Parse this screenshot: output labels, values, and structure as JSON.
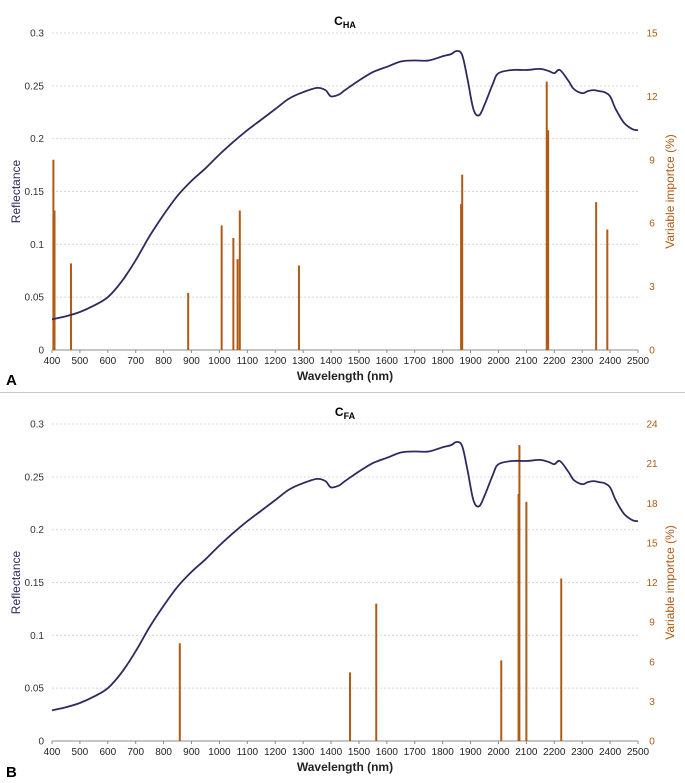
{
  "chart_data": [
    {
      "panel": "A",
      "type": "line",
      "title": "C",
      "title_sub": "HA",
      "xlabel": "Wavelength (nm)",
      "ylabel": "Reflectance",
      "y2label": "Variable importce (%)",
      "xlim": [
        400,
        2500
      ],
      "xticks": [
        400,
        500,
        600,
        700,
        800,
        900,
        1000,
        1100,
        1200,
        1300,
        1400,
        1500,
        1600,
        1700,
        1800,
        1900,
        2000,
        2100,
        2200,
        2300,
        2400,
        2500
      ],
      "ylim": [
        0,
        0.3
      ],
      "yticks": [
        0,
        0.05,
        0.1,
        0.15,
        0.2,
        0.25,
        0.3
      ],
      "ytick_labels": [
        "0",
        "0.05",
        "0.1",
        "0.15",
        "0.2",
        "0.25",
        "0.3"
      ],
      "y2lim": [
        0,
        15
      ],
      "y2ticks": [
        0,
        3,
        6,
        9,
        12,
        15
      ],
      "grid": "horizontal",
      "series": [
        {
          "kind": "reflectance-line",
          "color": "#2e2a5e",
          "x": [
            400,
            450,
            500,
            550,
            600,
            650,
            700,
            750,
            800,
            850,
            900,
            950,
            1000,
            1050,
            1100,
            1150,
            1200,
            1250,
            1300,
            1350,
            1380,
            1400,
            1430,
            1450,
            1500,
            1550,
            1600,
            1650,
            1700,
            1750,
            1800,
            1830,
            1850,
            1870,
            1890,
            1910,
            1930,
            1950,
            1980,
            2000,
            2050,
            2100,
            2150,
            2180,
            2200,
            2220,
            2250,
            2270,
            2300,
            2320,
            2340,
            2360,
            2380,
            2400,
            2420,
            2450,
            2480,
            2500
          ],
          "y": [
            0.029,
            0.032,
            0.036,
            0.042,
            0.05,
            0.065,
            0.085,
            0.108,
            0.128,
            0.146,
            0.16,
            0.172,
            0.185,
            0.197,
            0.208,
            0.218,
            0.228,
            0.238,
            0.244,
            0.248,
            0.246,
            0.24,
            0.242,
            0.246,
            0.255,
            0.263,
            0.268,
            0.273,
            0.274,
            0.274,
            0.278,
            0.28,
            0.283,
            0.279,
            0.255,
            0.228,
            0.222,
            0.232,
            0.252,
            0.262,
            0.265,
            0.265,
            0.266,
            0.264,
            0.262,
            0.265,
            0.255,
            0.247,
            0.243,
            0.245,
            0.246,
            0.245,
            0.244,
            0.24,
            0.228,
            0.215,
            0.209,
            0.208
          ]
        },
        {
          "kind": "importance-bars",
          "color": "#b05a14",
          "x": [
            405,
            409,
            468,
            888,
            1008,
            1050,
            1065,
            1073,
            1285,
            1866,
            1870,
            2173,
            2178,
            2350,
            2390
          ],
          "values": [
            9.0,
            6.6,
            4.1,
            2.7,
            5.9,
            5.3,
            4.3,
            6.6,
            4.0,
            6.9,
            8.3,
            12.7,
            10.4,
            7.0,
            5.7
          ]
        }
      ]
    },
    {
      "panel": "B",
      "type": "line",
      "title": "C",
      "title_sub": "FA",
      "xlabel": "Wavelength (nm)",
      "ylabel": "Reflectance",
      "y2label": "Variable importce (%)",
      "xlim": [
        400,
        2500
      ],
      "xticks": [
        400,
        500,
        600,
        700,
        800,
        900,
        1000,
        1100,
        1200,
        1300,
        1400,
        1500,
        1600,
        1700,
        1800,
        1900,
        2000,
        2100,
        2200,
        2300,
        2400,
        2500
      ],
      "ylim": [
        0,
        0.3
      ],
      "yticks": [
        0,
        0.05,
        0.1,
        0.15,
        0.2,
        0.25,
        0.3
      ],
      "ytick_labels": [
        "0",
        "0.05",
        "0.1",
        "0.15",
        "0.2",
        "0.25",
        "0.3"
      ],
      "y2lim": [
        0,
        24
      ],
      "y2ticks": [
        0,
        3,
        6,
        9,
        12,
        15,
        18,
        21,
        24
      ],
      "grid": "horizontal",
      "series": [
        {
          "kind": "reflectance-line",
          "color": "#2e2a5e",
          "x": [
            400,
            450,
            500,
            550,
            600,
            650,
            700,
            750,
            800,
            850,
            900,
            950,
            1000,
            1050,
            1100,
            1150,
            1200,
            1250,
            1300,
            1350,
            1380,
            1400,
            1430,
            1450,
            1500,
            1550,
            1600,
            1650,
            1700,
            1750,
            1800,
            1830,
            1850,
            1870,
            1890,
            1910,
            1930,
            1950,
            1980,
            2000,
            2050,
            2100,
            2150,
            2180,
            2200,
            2220,
            2250,
            2270,
            2300,
            2320,
            2340,
            2360,
            2380,
            2400,
            2420,
            2450,
            2480,
            2500
          ],
          "y": [
            0.029,
            0.032,
            0.036,
            0.042,
            0.05,
            0.065,
            0.085,
            0.108,
            0.128,
            0.146,
            0.16,
            0.172,
            0.185,
            0.197,
            0.208,
            0.218,
            0.228,
            0.238,
            0.244,
            0.248,
            0.246,
            0.24,
            0.242,
            0.246,
            0.255,
            0.263,
            0.268,
            0.273,
            0.274,
            0.274,
            0.278,
            0.28,
            0.283,
            0.279,
            0.255,
            0.228,
            0.222,
            0.232,
            0.252,
            0.262,
            0.265,
            0.265,
            0.266,
            0.264,
            0.262,
            0.265,
            0.255,
            0.247,
            0.243,
            0.245,
            0.246,
            0.245,
            0.244,
            0.24,
            0.228,
            0.215,
            0.209,
            0.208
          ]
        },
        {
          "kind": "importance-bars",
          "color": "#b05a14",
          "x": [
            858,
            1468,
            1562,
            2010,
            2072,
            2075,
            2100,
            2225
          ],
          "values": [
            7.4,
            5.2,
            10.4,
            6.1,
            18.7,
            22.4,
            18.1,
            12.3
          ]
        }
      ]
    }
  ],
  "panels": [
    {
      "letter": "A"
    },
    {
      "letter": "B"
    }
  ]
}
